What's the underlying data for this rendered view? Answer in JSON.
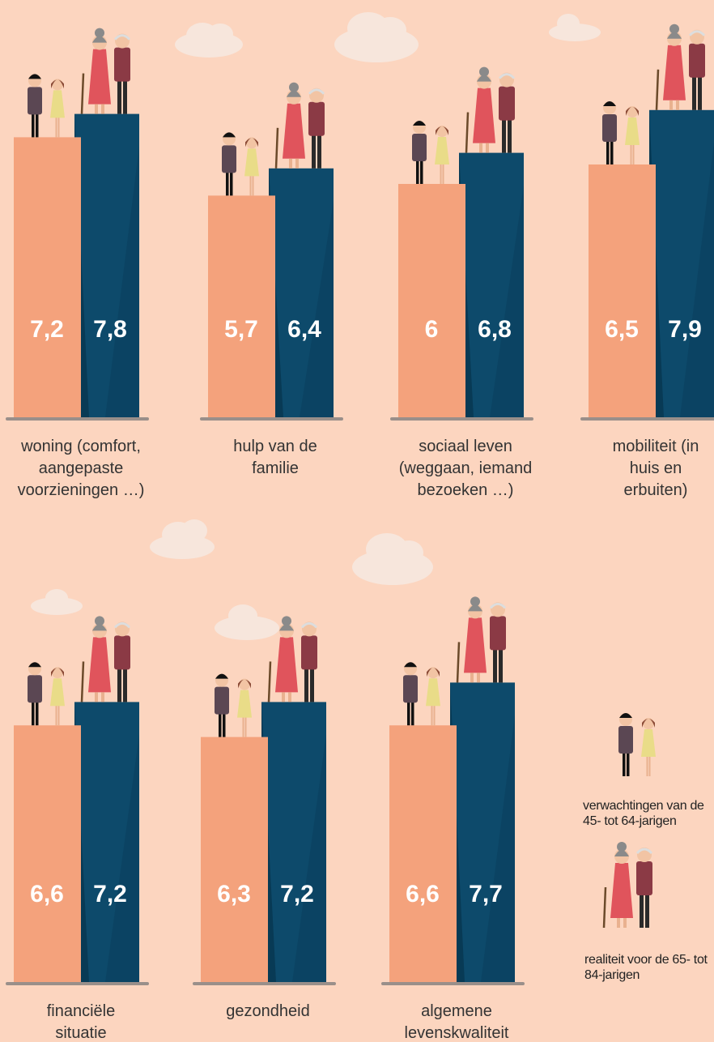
{
  "chart_data": {
    "type": "bar",
    "categories": [
      "woning (comfort, aangepaste voorzieningen …)",
      "hulp van de familie",
      "sociaal leven (weggaan, iemand bezoeken …)",
      "mobiliteit (in huis en erbuiten)",
      "financiële situatie",
      "gezondheid",
      "algemene levenskwaliteit"
    ],
    "series": [
      {
        "name": "verwachtingen van de 45- tot 64-jarigen",
        "color": "#f4a27c",
        "values": [
          7.2,
          5.7,
          6,
          6.5,
          6.6,
          6.3,
          6.6
        ],
        "value_labels": [
          "7,2",
          "5,7",
          "6",
          "6,5",
          "6,6",
          "6,3",
          "6,6"
        ]
      },
      {
        "name": "realiteit voor de 65- tot 84-jarigen",
        "color": "#0d4a6b",
        "values": [
          7.8,
          6.4,
          6.8,
          7.9,
          7.2,
          7.2,
          7.7
        ],
        "value_labels": [
          "7,8",
          "6,4",
          "6,8",
          "7,9",
          "7,2",
          "7,2",
          "7,7"
        ]
      }
    ]
  }
}
